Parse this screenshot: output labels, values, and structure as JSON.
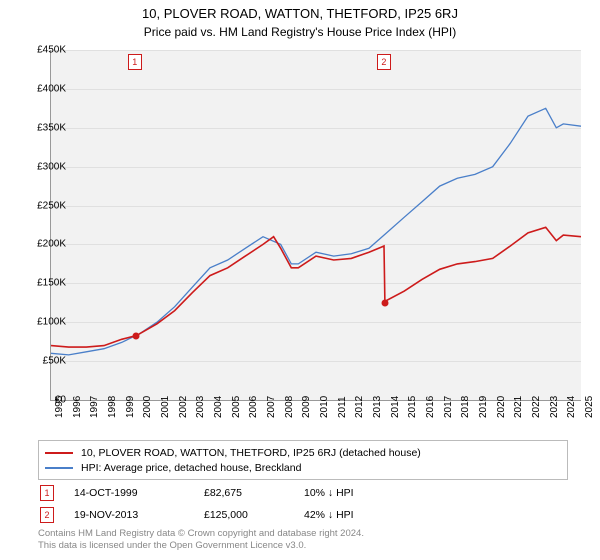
{
  "title": "10, PLOVER ROAD, WATTON, THETFORD, IP25 6RJ",
  "subtitle": "Price paid vs. HM Land Registry's House Price Index (HPI)",
  "chart": {
    "background_color": "#f2f2f2",
    "grid_color": "#e0e0e0",
    "y": {
      "min": 0,
      "max": 450000,
      "step": 50000,
      "ticks": [
        "£0",
        "£50K",
        "£100K",
        "£150K",
        "£200K",
        "£250K",
        "£300K",
        "£350K",
        "£400K",
        "£450K"
      ]
    },
    "x": {
      "min": 1995,
      "max": 2025,
      "ticks": [
        "1995",
        "1996",
        "1997",
        "1998",
        "1999",
        "2000",
        "2001",
        "2002",
        "2003",
        "2004",
        "2005",
        "2006",
        "2007",
        "2008",
        "2009",
        "2010",
        "2011",
        "2012",
        "2013",
        "2014",
        "2015",
        "2016",
        "2017",
        "2018",
        "2019",
        "2020",
        "2021",
        "2022",
        "2023",
        "2024",
        "2025"
      ]
    },
    "series_hpi": {
      "color": "#4a7fc9",
      "line_width": 1.3,
      "points": [
        [
          1995,
          60000
        ],
        [
          1996,
          58000
        ],
        [
          1997,
          62000
        ],
        [
          1998,
          66000
        ],
        [
          1999,
          74000
        ],
        [
          2000,
          85000
        ],
        [
          2001,
          100000
        ],
        [
          2002,
          120000
        ],
        [
          2003,
          145000
        ],
        [
          2004,
          170000
        ],
        [
          2005,
          180000
        ],
        [
          2006,
          195000
        ],
        [
          2007,
          210000
        ],
        [
          2008,
          200000
        ],
        [
          2008.6,
          175000
        ],
        [
          2009,
          175000
        ],
        [
          2010,
          190000
        ],
        [
          2011,
          185000
        ],
        [
          2012,
          188000
        ],
        [
          2013,
          195000
        ],
        [
          2014,
          215000
        ],
        [
          2015,
          235000
        ],
        [
          2016,
          255000
        ],
        [
          2017,
          275000
        ],
        [
          2018,
          285000
        ],
        [
          2019,
          290000
        ],
        [
          2020,
          300000
        ],
        [
          2021,
          330000
        ],
        [
          2022,
          365000
        ],
        [
          2023,
          375000
        ],
        [
          2023.6,
          350000
        ],
        [
          2024,
          355000
        ],
        [
          2025,
          352000
        ]
      ]
    },
    "series_property": {
      "color": "#cd1b1b",
      "line_width": 1.6,
      "points": [
        [
          1995,
          70000
        ],
        [
          1996,
          68000
        ],
        [
          1997,
          68000
        ],
        [
          1998,
          70000
        ],
        [
          1999,
          78000
        ],
        [
          1999.8,
          82675
        ],
        [
          2000,
          85000
        ],
        [
          2001,
          98000
        ],
        [
          2002,
          115000
        ],
        [
          2003,
          138000
        ],
        [
          2004,
          160000
        ],
        [
          2005,
          170000
        ],
        [
          2006,
          185000
        ],
        [
          2007,
          200000
        ],
        [
          2007.6,
          210000
        ],
        [
          2008,
          195000
        ],
        [
          2008.6,
          170000
        ],
        [
          2009,
          170000
        ],
        [
          2010,
          185000
        ],
        [
          2011,
          180000
        ],
        [
          2012,
          182000
        ],
        [
          2013,
          190000
        ],
        [
          2013.85,
          198000
        ],
        [
          2013.9,
          125000
        ],
        [
          2014,
          128000
        ],
        [
          2015,
          140000
        ],
        [
          2016,
          155000
        ],
        [
          2017,
          168000
        ],
        [
          2018,
          175000
        ],
        [
          2019,
          178000
        ],
        [
          2020,
          182000
        ],
        [
          2021,
          198000
        ],
        [
          2022,
          215000
        ],
        [
          2023,
          222000
        ],
        [
          2023.6,
          205000
        ],
        [
          2024,
          212000
        ],
        [
          2025,
          210000
        ]
      ]
    },
    "event_markers": [
      {
        "n": "1",
        "year": 1999.8,
        "price": 82675,
        "color": "#cd1b1b"
      },
      {
        "n": "2",
        "year": 2013.9,
        "price": 125000,
        "color": "#cd1b1b"
      }
    ]
  },
  "legend": {
    "items": [
      {
        "color": "#cd1b1b",
        "label": "10, PLOVER ROAD, WATTON, THETFORD, IP25 6RJ (detached house)"
      },
      {
        "color": "#4a7fc9",
        "label": "HPI: Average price, detached house, Breckland"
      }
    ]
  },
  "events": [
    {
      "n": "1",
      "date": "14-OCT-1999",
      "price": "£82,675",
      "delta": "10% ↓ HPI"
    },
    {
      "n": "2",
      "date": "19-NOV-2013",
      "price": "£125,000",
      "delta": "42% ↓ HPI"
    }
  ],
  "footer": {
    "line1": "Contains HM Land Registry data © Crown copyright and database right 2024.",
    "line2": "This data is licensed under the Open Government Licence v3.0."
  }
}
